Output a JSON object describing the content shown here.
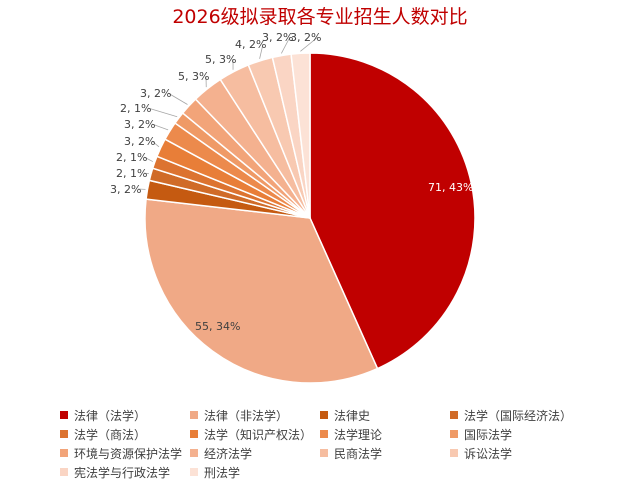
{
  "chart_data": {
    "type": "pie",
    "title": "2026级拟录取各专业招生人数对比",
    "slices": [
      {
        "name": "法律（法学）",
        "value": 71,
        "label": "71, 43%",
        "color": "#c00000"
      },
      {
        "name": "法律（非法学）",
        "value": 55,
        "label": "55, 34%",
        "color": "#f0a986"
      },
      {
        "name": "法律史",
        "value": 3,
        "label": "3, 2%",
        "color": "#c55a11"
      },
      {
        "name": "法学（国际经济法）",
        "value": 2,
        "label": "2, 1%",
        "color": "#d06b28"
      },
      {
        "name": "法学（商法）",
        "value": 2,
        "label": "2, 1%",
        "color": "#dc7330"
      },
      {
        "name": "法学（知识产权法）",
        "value": 3,
        "label": "3, 2%",
        "color": "#e87e38"
      },
      {
        "name": "法学理论",
        "value": 3,
        "label": "3, 2%",
        "color": "#ec8a4c"
      },
      {
        "name": "国际法学",
        "value": 2,
        "label": "2, 1%",
        "color": "#ef9a66"
      },
      {
        "name": "环境与资源保护法学",
        "value": 3,
        "label": "3, 2%",
        "color": "#f2a479"
      },
      {
        "name": "经济法学",
        "value": 5,
        "label": "5, 3%",
        "color": "#f4b18f"
      },
      {
        "name": "民商法学",
        "value": 5,
        "label": "5, 3%",
        "color": "#f6bda0"
      },
      {
        "name": "诉讼法学",
        "value": 4,
        "label": "4, 2%",
        "color": "#f8c9b1"
      },
      {
        "name": "宪法学与行政法学",
        "value": 3,
        "label": "3, 2%",
        "color": "#fad5c4"
      },
      {
        "name": "刑法学",
        "value": 3,
        "label": "3, 2%",
        "color": "#fce2d6"
      }
    ],
    "legend_placement": "bottom"
  }
}
